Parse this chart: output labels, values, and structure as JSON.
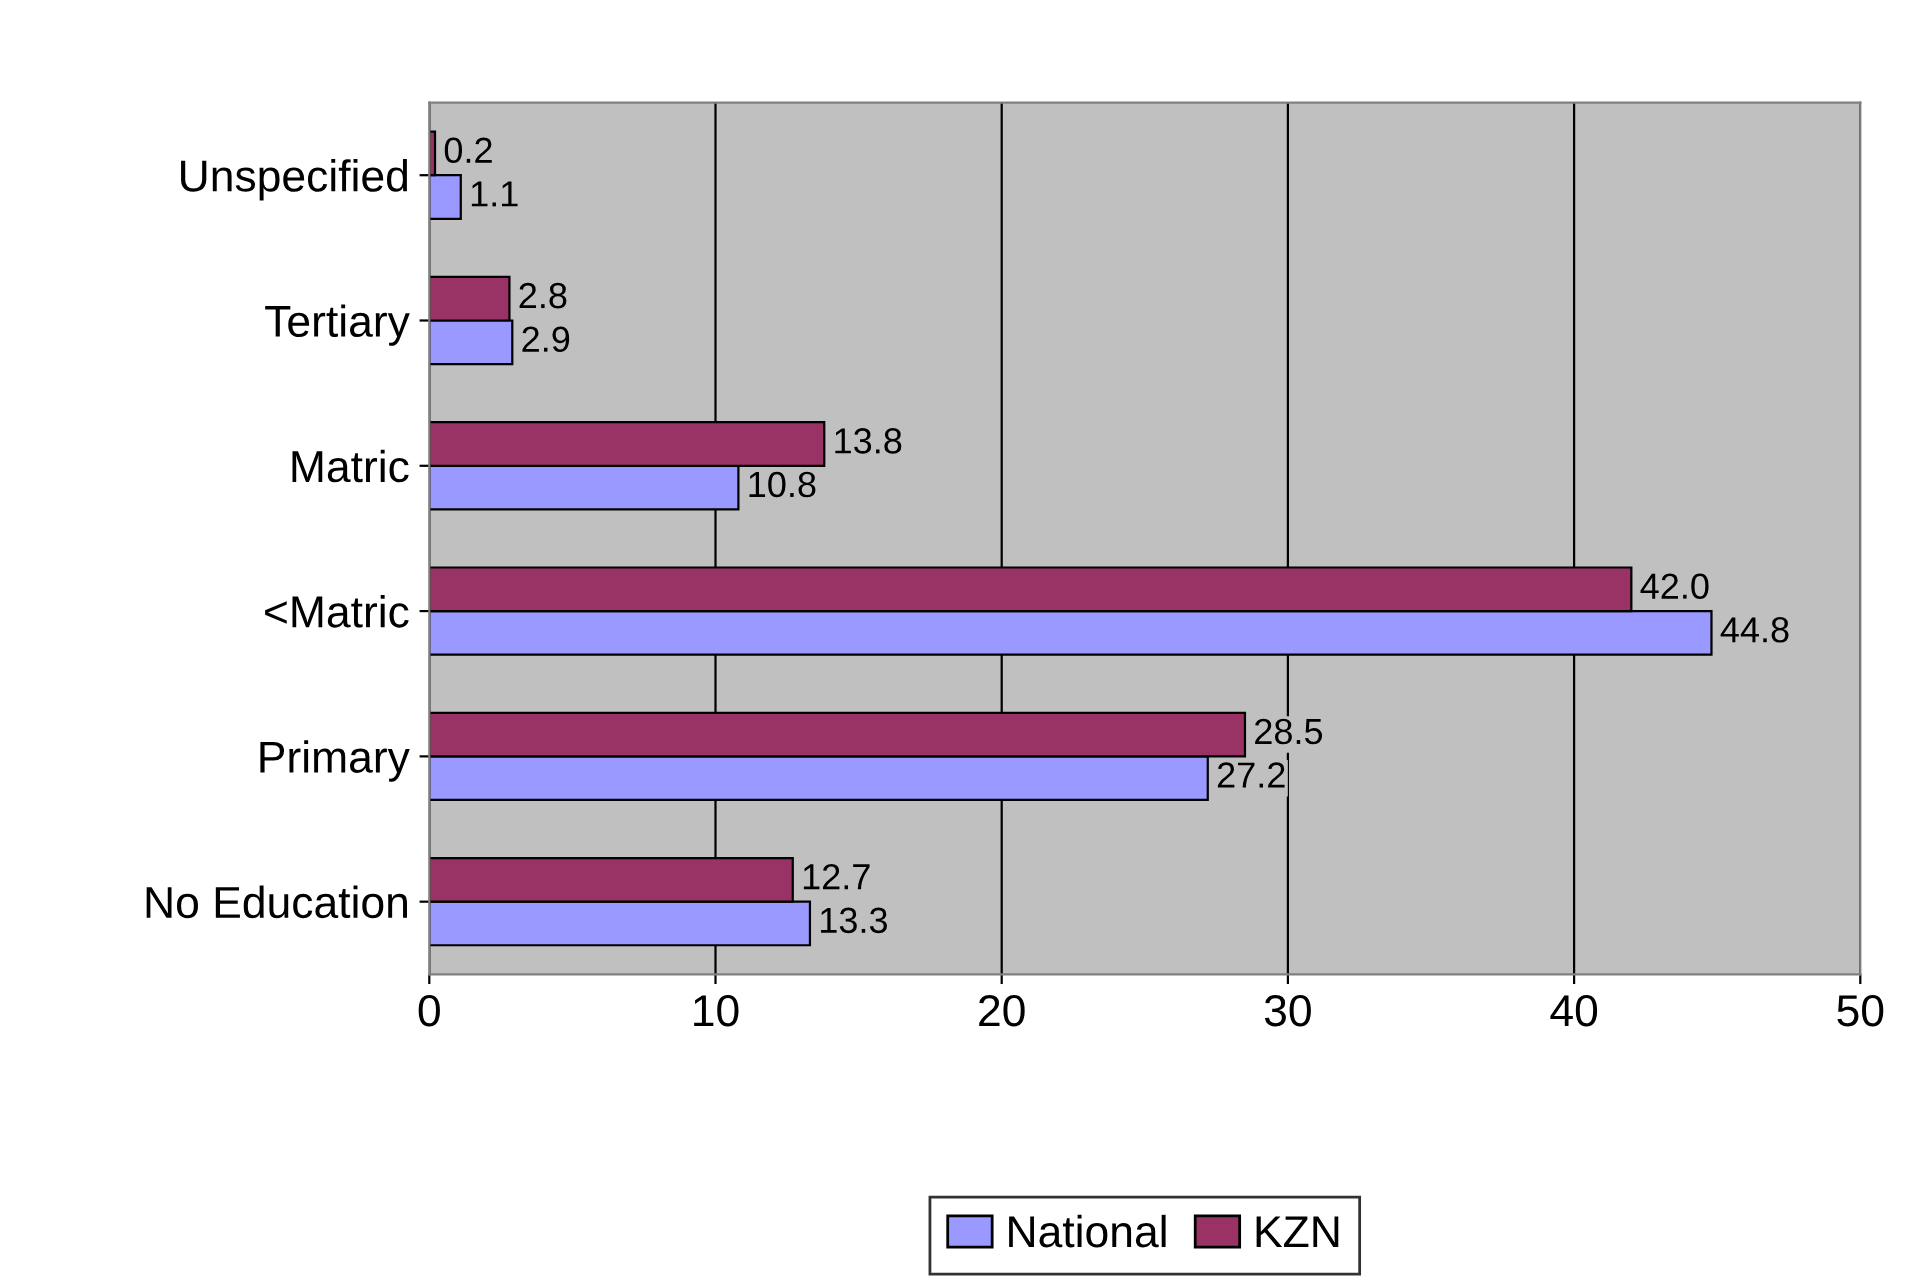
{
  "chart_data": {
    "type": "bar",
    "orientation": "horizontal",
    "categories": [
      "Unspecified",
      "Tertiary",
      "Matric",
      "<Matric",
      "Primary",
      "No Education"
    ],
    "series": [
      {
        "name": "National",
        "color": "#9999ff",
        "values": [
          1.1,
          2.9,
          10.8,
          44.8,
          27.2,
          13.3
        ],
        "value_labels": [
          "1.1",
          "2.9",
          "10.8",
          "44.8",
          "27.2",
          "13.3"
        ]
      },
      {
        "name": "KZN",
        "color": "#993366",
        "values": [
          0.2,
          2.8,
          13.8,
          42.0,
          28.5,
          12.7
        ],
        "value_labels": [
          "0.2",
          "2.8",
          "13.8",
          "42.0",
          "28.5",
          "12.7"
        ]
      }
    ],
    "xlim": [
      0,
      50
    ],
    "xticks": [
      0,
      10,
      20,
      30,
      40,
      50
    ],
    "grid": "x",
    "legend": "bottom"
  }
}
